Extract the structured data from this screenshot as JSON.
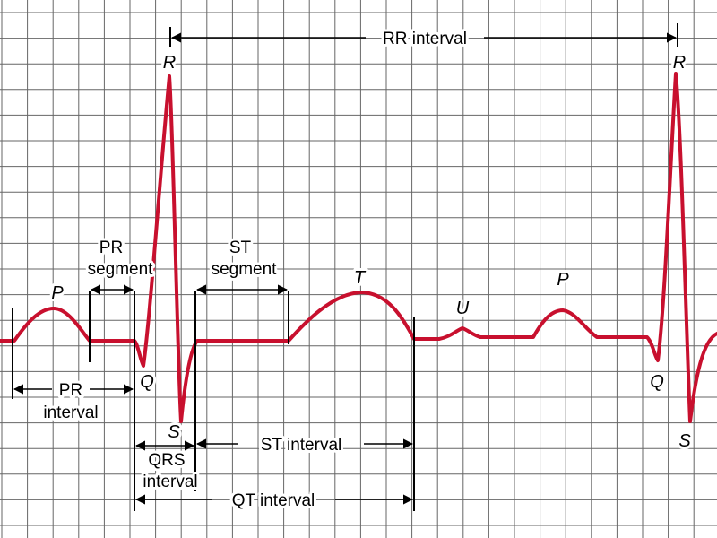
{
  "diagram": {
    "colors": {
      "trace": "#c8102e",
      "grid": "#666666",
      "annotation": "#000000",
      "background": "#ffffff"
    },
    "wave_labels": {
      "p1": "P",
      "q1": "Q",
      "r1": "R",
      "s1": "S",
      "t": "T",
      "u": "U",
      "p2": "P",
      "q2": "Q",
      "r2": "R",
      "s2": "S"
    },
    "interval_labels": {
      "rr": "RR interval",
      "pr_segment_line1": "PR",
      "pr_segment_line2": "segment",
      "st_segment_line1": "ST",
      "st_segment_line2": "segment",
      "pr_interval_line1": "PR",
      "pr_interval_line2": "interval",
      "st_interval": "ST interval",
      "qrs_interval_line1": "QRS",
      "qrs_interval_line2": "interval",
      "qt_interval": "QT interval"
    }
  }
}
